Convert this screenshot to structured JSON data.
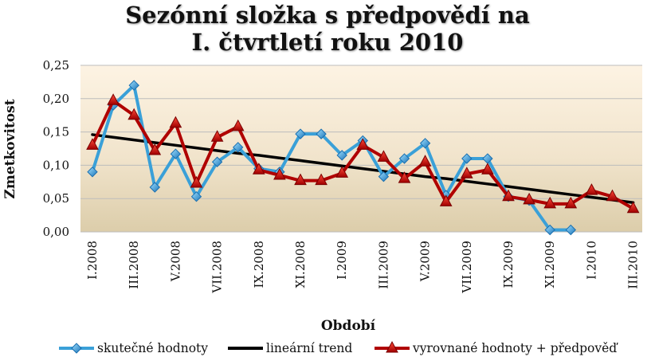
{
  "chart_data": {
    "type": "line",
    "title_lines": [
      "Sezónní složka s předpovědí na",
      "I. čtvrtletí roku 2010"
    ],
    "xlabel": "Období",
    "ylabel": "Zmetkovitost",
    "ylim": [
      0,
      0.25
    ],
    "yticks": [
      "0,00",
      "0,05",
      "0,10",
      "0,15",
      "0,20",
      "0,25"
    ],
    "categories": [
      "I.2008",
      "II.2008",
      "III.2008",
      "IV.2008",
      "V.2008",
      "VI.2008",
      "VII.2008",
      "VIII.2008",
      "IX.2008",
      "X.2008",
      "XI.2008",
      "XII.2008",
      "I.2009",
      "II.2009",
      "III.2009",
      "IV.2009",
      "V.2009",
      "VI.2009",
      "VII.2009",
      "VIII.2009",
      "IX.2009",
      "X.2009",
      "XI.2009",
      "XII.2009",
      "I.2010",
      "II.2010",
      "III.2010"
    ],
    "tick_labels": [
      "I.2008",
      "III.2008",
      "V.2008",
      "VII.2008",
      "IX.2008",
      "XI.2008",
      "I.2009",
      "III.2009",
      "V.2009",
      "VII.2009",
      "IX.2009",
      "XI.2009",
      "I.2010",
      "III.2010"
    ],
    "legend_position": "bottom",
    "grid": true,
    "series": [
      {
        "name": "skutečné hodnoty",
        "color": "#3aa0d8",
        "marker": "diamond",
        "values": [
          0.09,
          0.19,
          0.22,
          0.067,
          0.117,
          0.053,
          0.105,
          0.127,
          0.095,
          0.09,
          0.147,
          0.147,
          0.115,
          0.137,
          0.083,
          0.11,
          0.133,
          0.055,
          0.11,
          0.11,
          0.053,
          0.047,
          0.003,
          0.003,
          null,
          null,
          null
        ]
      },
      {
        "name": "lineární trend",
        "color": "#000000",
        "marker": "none",
        "values": [
          0.146,
          0.142,
          0.138,
          0.134,
          0.13,
          0.126,
          0.122,
          0.118,
          0.115,
          0.111,
          0.107,
          0.103,
          0.099,
          0.095,
          0.091,
          0.087,
          0.083,
          0.08,
          0.076,
          0.072,
          0.068,
          0.064,
          0.06,
          0.056,
          0.052,
          0.048,
          0.044
        ]
      },
      {
        "name": "vyrovnané hodnoty + předpověď",
        "color": "#b00000",
        "marker": "triangle",
        "values": [
          0.13,
          0.197,
          0.175,
          0.122,
          0.163,
          0.073,
          0.142,
          0.158,
          0.093,
          0.085,
          0.077,
          0.077,
          0.088,
          0.13,
          0.112,
          0.08,
          0.105,
          0.045,
          0.087,
          0.093,
          0.053,
          0.048,
          0.042,
          0.042,
          0.062,
          0.053,
          0.035
        ]
      }
    ]
  }
}
